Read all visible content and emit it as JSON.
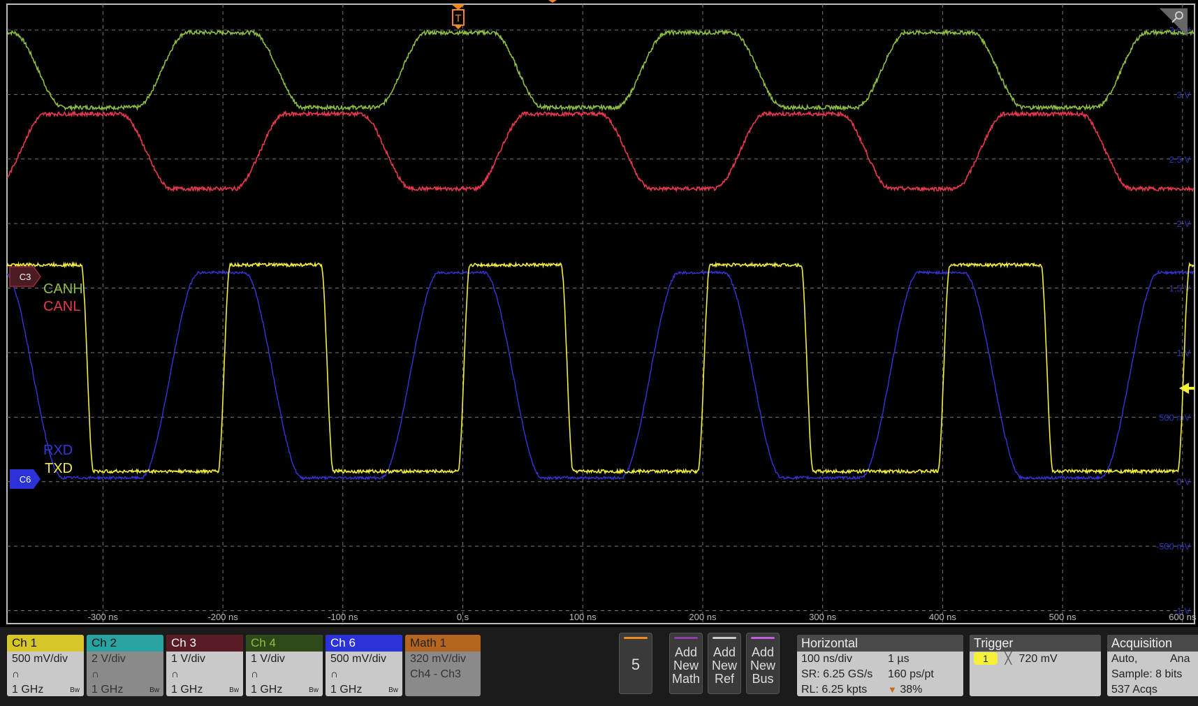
{
  "chart_data": {
    "type": "line",
    "xlabel": "",
    "ylabel": "",
    "xlim": [
      -380,
      610
    ],
    "ylim": [
      -1.1,
      3.7
    ],
    "x_ticks": [
      "-300 ns",
      "-200 ns",
      "-100 ns",
      "0 s",
      "100 ns",
      "200 ns",
      "300 ns",
      "400 ns",
      "500 ns",
      "600 ns"
    ],
    "y_ticks": [
      "3.5 V",
      "3 V",
      "2.5 V",
      "2 V",
      "1.5 V",
      "1 V",
      "500 mV",
      "0 V",
      "-500 mV",
      "-1 V"
    ],
    "y_tick_values": [
      3.5,
      3,
      2.5,
      2,
      1.5,
      1,
      0.5,
      0,
      -0.5,
      -1
    ],
    "x_tick_values": [
      -300,
      -200,
      -100,
      0,
      100,
      200,
      300,
      400,
      500,
      600
    ],
    "grid": true,
    "series": [
      {
        "name": "CANH",
        "color": "#8fbf3f",
        "low": 2.9,
        "high": 3.48,
        "phase": -380,
        "period": 200,
        "width": [
          20,
          60,
          20,
          100
        ]
      },
      {
        "name": "CANL",
        "color": "#e8384f",
        "low": 2.27,
        "high": 2.85,
        "phase": -380,
        "period": 200
      },
      {
        "name": "TXD",
        "color": "#f5ef3a",
        "low": 0.08,
        "high": 1.68
      },
      {
        "name": "RXD",
        "color": "#3535d8",
        "low": 0.03,
        "high": 1.62
      }
    ]
  },
  "labels": {
    "canh": "CANH",
    "canl": "CANL",
    "rxd": "RXD",
    "txd": "TXD",
    "c3": "C3",
    "c6": "C6",
    "trigger": "T"
  },
  "channels": [
    {
      "name": "Ch 1",
      "scale": "500 mV/div",
      "bw": "1 GHz",
      "bw_icon": "Bw",
      "hdr_color": "#d6c62a",
      "text_color": "#111"
    },
    {
      "name": "Ch 2",
      "scale": "2 V/div",
      "bw": "1 GHz",
      "bw_icon": "Bw",
      "hdr_color": "#28a3a0",
      "text_color": "#111",
      "dim": true
    },
    {
      "name": "Ch 3",
      "scale": "1 V/div",
      "bw": "1 GHz",
      "bw_icon": "Bw",
      "hdr_color": "#a02a3a",
      "text_color": "#fff"
    },
    {
      "name": "Ch 4",
      "scale": "1 V/div",
      "bw": "1 GHz",
      "bw_icon": "Bw",
      "hdr_color": "#5d8a28",
      "text_color": "#cfe"
    },
    {
      "name": "Ch 6",
      "scale": "500 mV/div",
      "bw": "1 GHz",
      "bw_icon": "Bw",
      "hdr_color": "#2a32d8",
      "text_color": "#fff"
    }
  ],
  "math": {
    "name": "Math 1",
    "scale": "320 mV/div",
    "expr": "Ch4 - Ch3"
  },
  "count_button": "5",
  "add_buttons": [
    {
      "l1": "Add",
      "l2": "New",
      "l3": "Math",
      "color": "#8a3fa8"
    },
    {
      "l1": "Add",
      "l2": "New",
      "l3": "Ref",
      "color": "#cccccc"
    },
    {
      "l1": "Add",
      "l2": "New",
      "l3": "Bus",
      "color": "#c060e0"
    }
  ],
  "horizontal": {
    "title": "Horizontal",
    "scale": "100 ns/div",
    "duration": "1 µs",
    "sr": "SR: 6.25 GS/s",
    "res": "160 ps/pt",
    "rl": "RL: 6.25 kpts",
    "pos": "38%"
  },
  "trigger": {
    "title": "Trigger",
    "src": "1",
    "level": "720 mV"
  },
  "acquisition": {
    "title": "Acquisition",
    "mode": "Auto,",
    "mode2": "Ana",
    "sample": "Sample: 8 bits",
    "acqs": "537 Acqs"
  }
}
